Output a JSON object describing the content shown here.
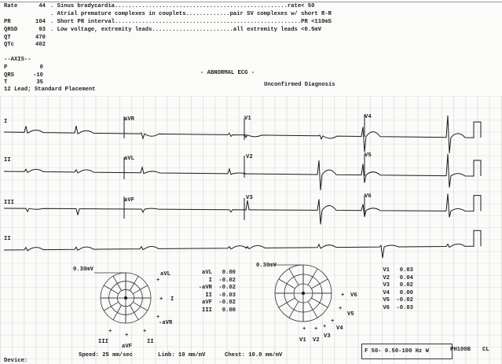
{
  "measurements": [
    {
      "label": "Rate",
      "value": "44"
    },
    {
      "label": "PR",
      "value": "104"
    },
    {
      "label": "QRSD",
      "value": "93"
    },
    {
      "label": "QT",
      "value": "470"
    },
    {
      "label": "QTc",
      "value": "402"
    }
  ],
  "interpretation": [
    {
      "text": ". Sinus bradycardia...................................................rate< 50"
    },
    {
      "text": ". Atrial premature complexes in couplets.............pair SV complexes w/ short R-R"
    },
    {
      "text": ". Short PR interval.......................................................PR <110mS"
    },
    {
      "text": ". Low voltage, extremity leads........................all extremity leads <0.5mV"
    }
  ],
  "axis": {
    "title": "--AXIS--",
    "items": [
      {
        "label": "P",
        "value": "0"
      },
      {
        "label": "QRS",
        "value": "-10"
      },
      {
        "label": "T",
        "value": "35"
      }
    ]
  },
  "placement": "12 Lead; Standard Placement",
  "overall": "- ABNORMAL ECG -",
  "status": "Unconfirmed Diagnosis",
  "leads": {
    "row1": [
      "I",
      "aVR",
      "V1",
      "V4"
    ],
    "row2": [
      "II",
      "aVL",
      "V2",
      "V5"
    ],
    "row3": [
      "III",
      "aVF",
      "V3",
      "V6"
    ],
    "row4": [
      "II"
    ]
  },
  "limb_vector": {
    "scale": "0.30mV",
    "labels": {
      "avl": "aVL",
      "i": "I",
      "navr": "-aVR",
      "ii": "II",
      "avf": "aVF",
      "iii": "III"
    },
    "values": [
      {
        "lead": "aVL",
        "value": "0.00"
      },
      {
        "lead": "I",
        "value": "-0.02"
      },
      {
        "lead": "-aVR",
        "value": "-0.02"
      },
      {
        "lead": "II",
        "value": "-0.03"
      },
      {
        "lead": "aVF",
        "value": "-0.02"
      },
      {
        "lead": "III",
        "value": "0.00"
      }
    ]
  },
  "chest_vector": {
    "scale": "0.30mV",
    "labels": {
      "v1": "V1",
      "v2": "V2",
      "v3": "V3",
      "v4": "V4",
      "v5": "V5",
      "v6": "V6"
    },
    "values": [
      {
        "lead": "V1",
        "value": "0.03"
      },
      {
        "lead": "V2",
        "value": "0.04"
      },
      {
        "lead": "V3",
        "value": "0.02"
      },
      {
        "lead": "V4",
        "value": "0.00"
      },
      {
        "lead": "V5",
        "value": "-0.02"
      },
      {
        "lead": "V6",
        "value": "-0.03"
      }
    ]
  },
  "footer": {
    "device": "Device:",
    "speed": "Speed: 25 mm/sec",
    "limb": "Limb: 10 mm/mV",
    "chest": "Chest: 10.0 mm/mV",
    "filter": "F 50- 0.50-100 Hz W",
    "model": "PH100B",
    "cl": "CL"
  }
}
